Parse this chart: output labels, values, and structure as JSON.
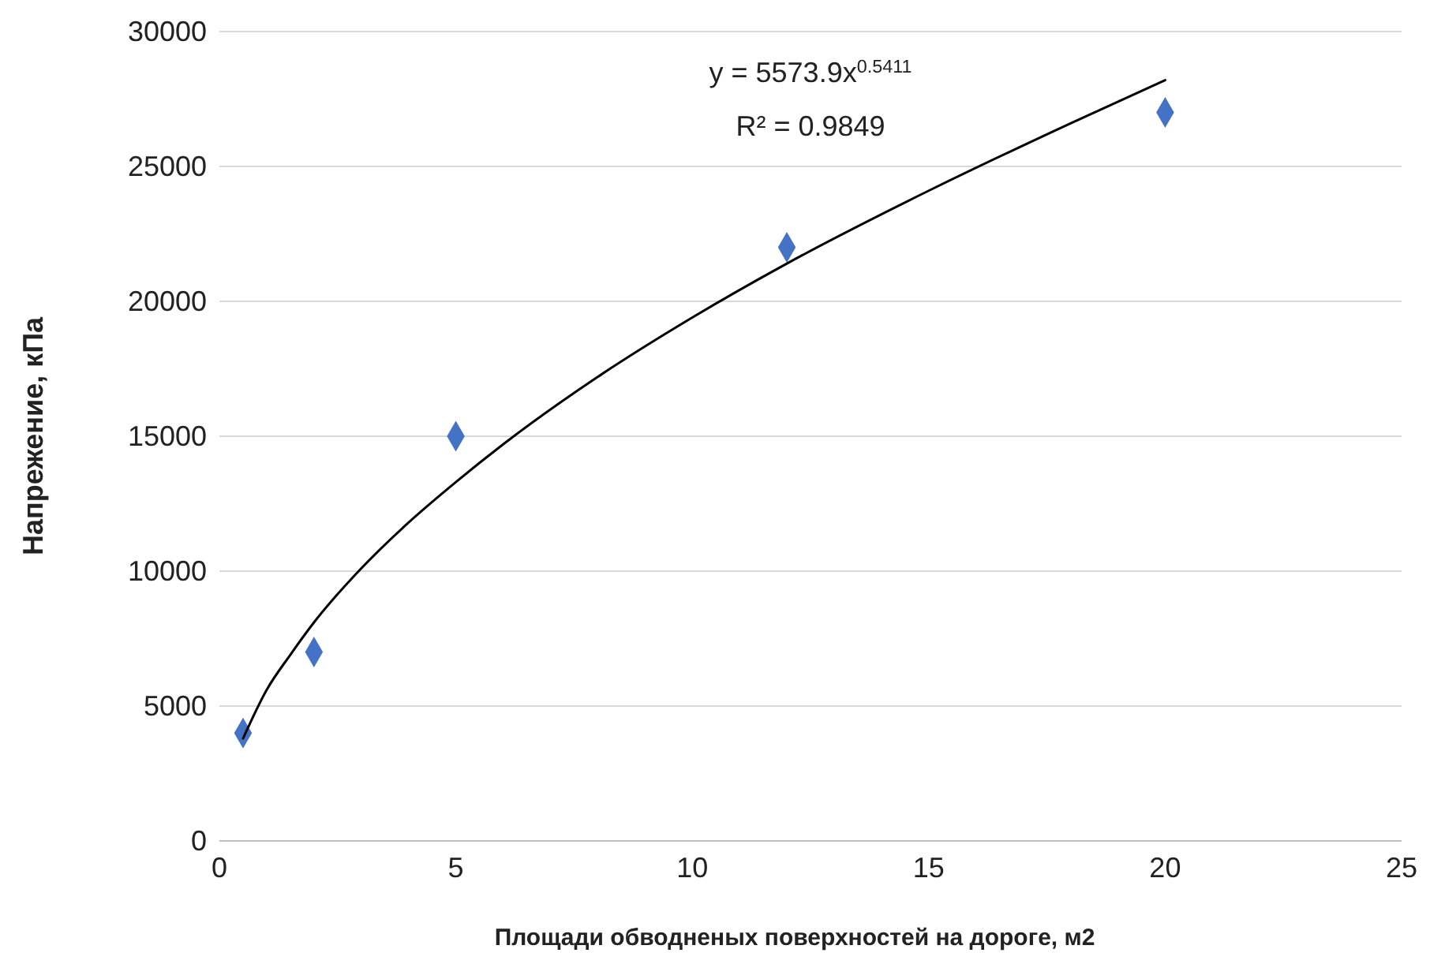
{
  "chart_data": {
    "type": "scatter",
    "xlabel": "Площади обводненых поверхностей на дороге, м2",
    "ylabel": "Напрежение, кПа",
    "xlim": [
      0,
      25
    ],
    "xticks": [
      0,
      5,
      10,
      15,
      20,
      25
    ],
    "ylim": [
      0,
      30000
    ],
    "yticks": [
      0,
      5000,
      10000,
      15000,
      20000,
      25000,
      30000
    ],
    "grid": "y",
    "marker": "diamond",
    "series": [
      {
        "type": "scatter",
        "color": "#4472c4",
        "x": [
          0.5,
          2,
          5,
          12,
          20
        ],
        "values": [
          4000,
          7000,
          15000,
          22000,
          27000
        ]
      },
      {
        "type": "line",
        "color": "#000000",
        "marker": "none",
        "line_style": "solid",
        "x": [
          0.5,
          1,
          1.5,
          2,
          3,
          4,
          5,
          6,
          8,
          10,
          12,
          15,
          18,
          20
        ],
        "values": [
          3800,
          5600,
          6900,
          8100,
          10100,
          11800,
          13300,
          14700,
          17200,
          19400,
          21400,
          24100,
          26600,
          28200
        ]
      }
    ],
    "annotations": [
      "y = 5573.9x$^{0.5411}$",
      "R² = 0.9849"
    ]
  }
}
